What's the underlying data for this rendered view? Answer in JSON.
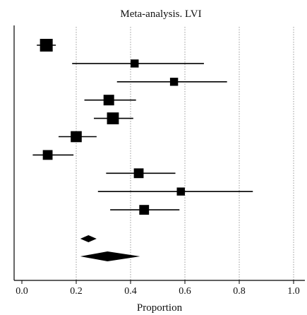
{
  "chart_data": {
    "type": "forest",
    "title": "Meta-analysis. LVI",
    "xlabel": "Proportion",
    "ylabel": "",
    "xlim": [
      0.0,
      1.0
    ],
    "xticks": [
      "0.0",
      "0.2",
      "0.4",
      "0.6",
      "0.8",
      "1.0"
    ],
    "gridlines": [
      0.2,
      0.4,
      0.6,
      0.8,
      1.0
    ],
    "grid_style": "dotted vertical",
    "studies": [
      {
        "estimate": 0.09,
        "lower": 0.055,
        "upper": 0.125,
        "weight": 1.0
      },
      {
        "estimate": 0.415,
        "lower": 0.185,
        "upper": 0.67,
        "weight": 0.45
      },
      {
        "estimate": 0.56,
        "lower": 0.35,
        "upper": 0.755,
        "weight": 0.45
      },
      {
        "estimate": 0.32,
        "lower": 0.23,
        "upper": 0.42,
        "weight": 0.75
      },
      {
        "estimate": 0.335,
        "lower": 0.265,
        "upper": 0.41,
        "weight": 0.9
      },
      {
        "estimate": 0.2,
        "lower": 0.135,
        "upper": 0.275,
        "weight": 0.8
      },
      {
        "estimate": 0.095,
        "lower": 0.04,
        "upper": 0.19,
        "weight": 0.65
      },
      {
        "estimate": 0.43,
        "lower": 0.31,
        "upper": 0.565,
        "weight": 0.65
      },
      {
        "estimate": 0.585,
        "lower": 0.28,
        "upper": 0.85,
        "weight": 0.45
      },
      {
        "estimate": 0.45,
        "lower": 0.325,
        "upper": 0.58,
        "weight": 0.65
      }
    ],
    "pooled": [
      {
        "estimate": 0.245,
        "lower": 0.215,
        "upper": 0.275,
        "kind": "fixed-effect"
      },
      {
        "estimate": 0.315,
        "lower": 0.215,
        "upper": 0.435,
        "kind": "random-effects"
      }
    ]
  }
}
